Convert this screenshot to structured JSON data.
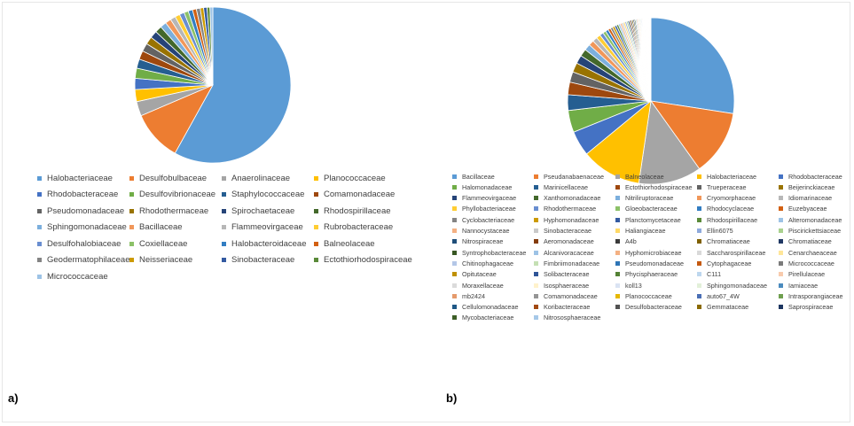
{
  "panels": {
    "a": {
      "label": "a)"
    },
    "b": {
      "label": "b)"
    }
  },
  "chart_data": [
    {
      "type": "pie",
      "title": "",
      "legend_position": "bottom",
      "slices": [
        {
          "name": "Halobacteriaceae",
          "value": 58.0,
          "color": "#5b9bd5"
        },
        {
          "name": "Desulfobulbaceae",
          "value": 10.5,
          "color": "#ed7d31"
        },
        {
          "name": "Anaerolinaceae",
          "value": 3.0,
          "color": "#a5a5a5"
        },
        {
          "name": "Planococcaceae",
          "value": 2.5,
          "color": "#ffc000"
        },
        {
          "name": "Rhodobacteraceae",
          "value": 2.3,
          "color": "#4472c4"
        },
        {
          "name": "Desulfovibrionaceae",
          "value": 2.1,
          "color": "#70ad47"
        },
        {
          "name": "Staphylococcaceae",
          "value": 1.9,
          "color": "#255e91"
        },
        {
          "name": "Comamonadaceae",
          "value": 1.8,
          "color": "#9e480e"
        },
        {
          "name": "Pseudomonadaceae",
          "value": 1.7,
          "color": "#636363"
        },
        {
          "name": "Rhodothermaceae",
          "value": 1.6,
          "color": "#997300"
        },
        {
          "name": "Spirochaetaceae",
          "value": 1.5,
          "color": "#264478"
        },
        {
          "name": "Rhodospirillaceae",
          "value": 1.4,
          "color": "#43682b"
        },
        {
          "name": "Sphingomonadaceae",
          "value": 1.3,
          "color": "#7cafdd"
        },
        {
          "name": "Bacillaceae",
          "value": 1.2,
          "color": "#f1975a"
        },
        {
          "name": "Flammeovirgaceae",
          "value": 1.1,
          "color": "#b7b7b7"
        },
        {
          "name": "Rubrobacteraceae",
          "value": 1.0,
          "color": "#ffcd33"
        },
        {
          "name": "Desulfohalobiaceae",
          "value": 1.0,
          "color": "#698ed0"
        },
        {
          "name": "Coxiellaceae",
          "value": 0.9,
          "color": "#8cc168"
        },
        {
          "name": "Halobacteroidaceae",
          "value": 0.9,
          "color": "#327dc2"
        },
        {
          "name": "Balneolaceae",
          "value": 0.8,
          "color": "#d26012"
        },
        {
          "name": "Geodermatophilaceae",
          "value": 0.8,
          "color": "#848484"
        },
        {
          "name": "Neisseriaceae",
          "value": 0.7,
          "color": "#cc9a00"
        },
        {
          "name": "Sinobacteraceae",
          "value": 0.7,
          "color": "#335aa1"
        },
        {
          "name": "Ectothiorhodospiraceae",
          "value": 0.6,
          "color": "#5a8a39"
        },
        {
          "name": "Micrococcaceae",
          "value": 0.6,
          "color": "#9dc3e6"
        }
      ]
    },
    {
      "type": "pie",
      "title": "",
      "legend_position": "bottom",
      "slices": [
        {
          "name": "Bacillaceae",
          "value": 27.0,
          "color": "#5b9bd5"
        },
        {
          "name": "Pseudanabaenaceae",
          "value": 12.5,
          "color": "#ed7d31"
        },
        {
          "name": "Balneolaceae",
          "value": 12.0,
          "color": "#a5a5a5"
        },
        {
          "name": "Halobacteriaceae",
          "value": 11.5,
          "color": "#ffc000"
        },
        {
          "name": "Rhodobacteraceae",
          "value": 4.8,
          "color": "#4472c4"
        },
        {
          "name": "Halomonadaceae",
          "value": 4.2,
          "color": "#70ad47"
        },
        {
          "name": "Marinicellaceae",
          "value": 3.0,
          "color": "#255e91"
        },
        {
          "name": "Ectothiorhodospiraceae",
          "value": 2.4,
          "color": "#9e480e"
        },
        {
          "name": "Trueperaceae",
          "value": 2.0,
          "color": "#636363"
        },
        {
          "name": "Beijerinckiaceae",
          "value": 1.8,
          "color": "#997300"
        },
        {
          "name": "Flammeovirgaceae",
          "value": 1.6,
          "color": "#264478"
        },
        {
          "name": "Xanthomonadaceae",
          "value": 1.4,
          "color": "#43682b"
        },
        {
          "name": "Nitriliruptoraceae",
          "value": 1.2,
          "color": "#7cafdd"
        },
        {
          "name": "Cryomorphaceae",
          "value": 1.0,
          "color": "#f1975a"
        },
        {
          "name": "Idiomarinaceae",
          "value": 0.9,
          "color": "#b7b7b7"
        },
        {
          "name": "Phyllobacteriaceae",
          "value": 0.8,
          "color": "#ffcd33"
        },
        {
          "name": "Rhodothermaceae",
          "value": 0.7,
          "color": "#698ed0"
        },
        {
          "name": "Gloeobacteraceae",
          "value": 0.6,
          "color": "#8cc168"
        },
        {
          "name": "Rhodocyclaceae",
          "value": 0.55,
          "color": "#327dc2"
        },
        {
          "name": "Euzebyaceae",
          "value": 0.5,
          "color": "#d26012"
        },
        {
          "name": "Cyclobacteriaceae",
          "value": 0.45,
          "color": "#848484"
        },
        {
          "name": "Hyphomonadaceae",
          "value": 0.42,
          "color": "#cc9a00"
        },
        {
          "name": "Planctomycetaceae",
          "value": 0.4,
          "color": "#335aa1"
        },
        {
          "name": "Rhodospirillaceae",
          "value": 0.38,
          "color": "#5a8a39"
        },
        {
          "name": "Alteromonadaceae",
          "value": 0.36,
          "color": "#9dc3e6"
        },
        {
          "name": "Nannocystaceae",
          "value": 0.34,
          "color": "#f4b183"
        },
        {
          "name": "Sinobacteraceae",
          "value": 0.32,
          "color": "#c9c9c9"
        },
        {
          "name": "Haliangiaceae",
          "value": 0.3,
          "color": "#ffd966"
        },
        {
          "name": "Ellin6075",
          "value": 0.29,
          "color": "#8faadc"
        },
        {
          "name": "Piscirickettsiaceae",
          "value": 0.28,
          "color": "#a9d18e"
        },
        {
          "name": "Nitrospiraceae",
          "value": 0.27,
          "color": "#1f4e79"
        },
        {
          "name": "Aeromonadaceae",
          "value": 0.26,
          "color": "#843c0c"
        },
        {
          "name": "A4b",
          "value": 0.25,
          "color": "#3a3a3a"
        },
        {
          "name": "Chromatiaceae",
          "value": 0.24,
          "color": "#7f6000"
        },
        {
          "name": "Chromatiaceae",
          "value": 0.23,
          "color": "#203864"
        },
        {
          "name": "Syntrophobacteraceae",
          "value": 0.22,
          "color": "#385723"
        },
        {
          "name": "Alcanivoracaceae",
          "value": 0.21,
          "color": "#9dc3e6"
        },
        {
          "name": "Hyphomicrobiaceae",
          "value": 0.2,
          "color": "#f4b183"
        },
        {
          "name": "Saccharospirillaceae",
          "value": 0.19,
          "color": "#d9d9d9"
        },
        {
          "name": "Cenarchaeaceae",
          "value": 0.18,
          "color": "#ffe699"
        },
        {
          "name": "Chitinophagaceae",
          "value": 0.17,
          "color": "#b4c7e7"
        },
        {
          "name": "Fimbriimonadaceae",
          "value": 0.16,
          "color": "#c5e0b4"
        },
        {
          "name": "Pseudomonadaceae",
          "value": 0.15,
          "color": "#2e75b6"
        },
        {
          "name": "Cytophagaceae",
          "value": 0.14,
          "color": "#c55a11"
        },
        {
          "name": "Micrococcaceae",
          "value": 0.13,
          "color": "#7b7b7b"
        },
        {
          "name": "Opitutaceae",
          "value": 0.12,
          "color": "#bf9000"
        },
        {
          "name": "Solibacteraceae",
          "value": 0.11,
          "color": "#2f5597"
        },
        {
          "name": "Phycisphaeraceae",
          "value": 0.1,
          "color": "#548235"
        },
        {
          "name": "C111",
          "value": 0.1,
          "color": "#bdd7ee"
        },
        {
          "name": "Pirellulaceae",
          "value": 0.09,
          "color": "#f8cbad"
        },
        {
          "name": "Moraxellaceae",
          "value": 0.09,
          "color": "#dbdbdb"
        },
        {
          "name": "Isosphaeraceae",
          "value": 0.08,
          "color": "#fff2cc"
        },
        {
          "name": "koll13",
          "value": 0.08,
          "color": "#dae3f3"
        },
        {
          "name": "Sphingomonadaceae",
          "value": 0.07,
          "color": "#e2f0d9"
        },
        {
          "name": "Iamiaceae",
          "value": 0.07,
          "color": "#4b8bbe"
        },
        {
          "name": "mb2424",
          "value": 0.06,
          "color": "#e59a6c"
        },
        {
          "name": "Comamonadaceae",
          "value": 0.06,
          "color": "#959595"
        },
        {
          "name": "Planococcaceae",
          "value": 0.05,
          "color": "#e6b800"
        },
        {
          "name": "auto67_4W",
          "value": 0.05,
          "color": "#4a6fb5"
        },
        {
          "name": "Intrasporangiaceae",
          "value": 0.05,
          "color": "#6f9f4f"
        },
        {
          "name": "Cellulomonadaceae",
          "value": 0.04,
          "color": "#1e5886"
        },
        {
          "name": "Koribacteraceae",
          "value": 0.04,
          "color": "#a24a12"
        },
        {
          "name": "Desulfobacteraceae",
          "value": 0.04,
          "color": "#525252"
        },
        {
          "name": "Gemmataceae",
          "value": 0.03,
          "color": "#8a6a00"
        },
        {
          "name": "Saprospiraceae",
          "value": 0.03,
          "color": "#1c3560"
        },
        {
          "name": "Mycobacteriaceae",
          "value": 0.03,
          "color": "#3d5e27"
        },
        {
          "name": "Nitrososphaeraceae",
          "value": 0.03,
          "color": "#a6c8e8"
        }
      ]
    }
  ]
}
